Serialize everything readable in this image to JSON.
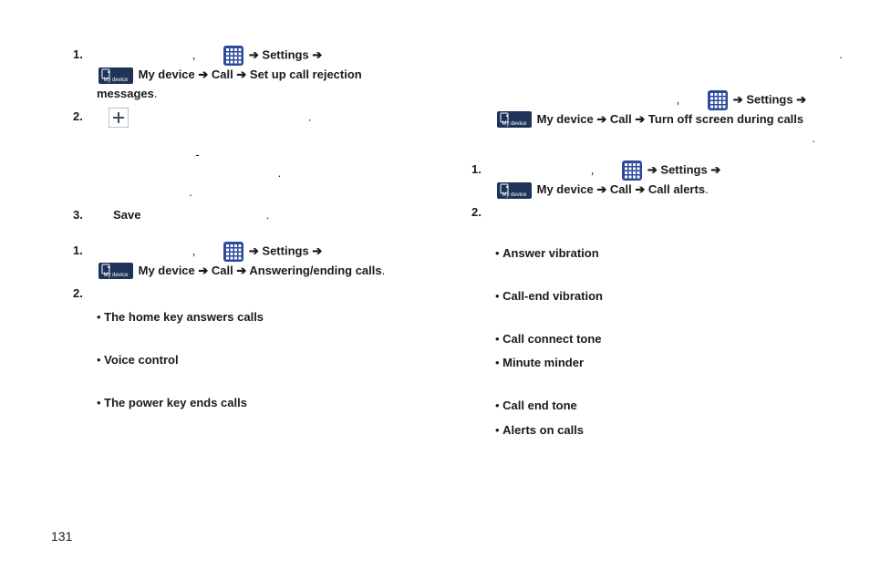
{
  "icons": {
    "grid_color": "#2a4a9c",
    "plus_bg": "#3d4d5c",
    "device_bg": "#1e3357"
  },
  "page_number": "131",
  "left": {
    "block1": {
      "num1": "1.",
      "settings": "Settings",
      "mydevice": "My device",
      "call": "Call",
      "setup": "Set up call rejection",
      "messages": "messages",
      "num2": "2.",
      "num3": "3.",
      "save": "Save"
    },
    "block2": {
      "num1": "1.",
      "settings": "Settings",
      "mydevice": "My device",
      "call": "Call",
      "answering": "Answering/ending calls",
      "num2": "2.",
      "b1": "The home key answers calls",
      "b2": "Voice control",
      "b3": "The power key ends calls"
    }
  },
  "right": {
    "block1": {
      "settings": "Settings",
      "mydevice": "My device",
      "call": "Call",
      "turnoff": "Turn off screen during calls"
    },
    "block2": {
      "num1": "1.",
      "settings": "Settings",
      "mydevice": "My device",
      "call": "Call",
      "alerts": "Call alerts",
      "num2": "2.",
      "b1": "Answer vibration",
      "b2": "Call-end vibration",
      "b3": "Call connect tone",
      "b4": "Minute minder",
      "b5": "Call end tone",
      "b6": "Alerts on calls"
    }
  }
}
